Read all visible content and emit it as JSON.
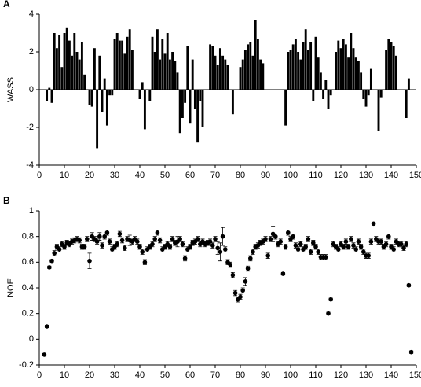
{
  "chart_data": [
    {
      "type": "bar",
      "label": "A",
      "ylabel": "WASS",
      "color": "#000000",
      "xlim": [
        0,
        150
      ],
      "xticks": [
        0,
        10,
        20,
        30,
        40,
        50,
        60,
        70,
        80,
        90,
        100,
        110,
        120,
        130,
        140,
        150
      ],
      "ylim": [
        -4,
        4
      ],
      "yticks": [
        -4,
        -2,
        0,
        2,
        4
      ],
      "x": [
        3,
        4,
        5,
        6,
        7,
        8,
        9,
        10,
        11,
        12,
        13,
        14,
        15,
        16,
        17,
        18,
        19,
        20,
        21,
        22,
        23,
        24,
        25,
        26,
        27,
        28,
        29,
        30,
        31,
        32,
        33,
        34,
        35,
        36,
        37,
        38,
        39,
        40,
        41,
        42,
        43,
        44,
        45,
        46,
        47,
        48,
        49,
        50,
        51,
        52,
        53,
        54,
        55,
        56,
        57,
        58,
        59,
        60,
        61,
        62,
        63,
        64,
        65,
        66,
        67,
        68,
        69,
        70,
        71,
        72,
        73,
        74,
        75,
        76,
        77,
        78,
        79,
        80,
        81,
        82,
        83,
        84,
        85,
        86,
        87,
        88,
        89,
        90,
        91,
        92,
        93,
        94,
        95,
        96,
        97,
        98,
        99,
        100,
        101,
        102,
        103,
        104,
        105,
        106,
        107,
        108,
        109,
        110,
        111,
        112,
        113,
        114,
        115,
        116,
        117,
        118,
        119,
        120,
        121,
        122,
        123,
        124,
        125,
        126,
        127,
        128,
        129,
        130,
        131,
        132,
        133,
        134,
        135,
        136,
        137,
        138,
        139,
        140,
        141,
        142,
        143,
        144,
        145,
        146,
        147
      ],
      "values": [
        -0.6,
        0.1,
        -0.7,
        3.0,
        2.2,
        2.9,
        1.2,
        3.0,
        3.3,
        2.6,
        1.8,
        3.0,
        2.0,
        1.6,
        2.5,
        0.8,
        0,
        -0.8,
        -0.9,
        2.2,
        -3.1,
        1.8,
        -1.2,
        0.6,
        -1.9,
        -0.3,
        -0.3,
        2.7,
        3.0,
        2.6,
        2.6,
        1.9,
        2.8,
        3.2,
        2.1,
        0,
        0,
        -0.5,
        0.4,
        -2.1,
        0,
        -0.6,
        2.8,
        2.0,
        3.2,
        1.6,
        2.7,
        1.9,
        3.0,
        1.6,
        2.0,
        1.5,
        0.9,
        -2.3,
        -1.5,
        -0.7,
        2.3,
        -1.8,
        1.6,
        -1.0,
        -2.8,
        -0.6,
        -2.0,
        0,
        0,
        2.4,
        2.3,
        1.8,
        1.3,
        2.2,
        1.8,
        1.6,
        1.3,
        0,
        -1.3,
        0,
        0,
        1.2,
        1.6,
        2.1,
        2.4,
        2.5,
        1.8,
        3.7,
        2.7,
        1.6,
        1.4,
        0,
        0,
        0,
        0,
        0,
        0,
        0,
        0,
        -1.9,
        2.0,
        2.1,
        2.4,
        2.7,
        2.0,
        1.6,
        2.5,
        3.2,
        2.1,
        2.5,
        -0.6,
        2.8,
        1.7,
        0.9,
        -0.5,
        0.5,
        -1.0,
        -0.3,
        0,
        2.0,
        2.6,
        2.2,
        2.7,
        2.4,
        1.7,
        3.0,
        2.2,
        1.7,
        1.5,
        0.9,
        -0.5,
        -0.9,
        -0.3,
        1.1,
        0,
        0,
        -2.2,
        -0.4,
        0,
        2.1,
        2.7,
        2.5,
        2.3,
        1.8,
        0,
        0,
        0,
        -1.5,
        0.6
      ]
    },
    {
      "type": "scatter",
      "label": "B",
      "ylabel": "NOE",
      "color": "#000000",
      "xlim": [
        0,
        150
      ],
      "xticks": [
        0,
        10,
        20,
        30,
        40,
        50,
        60,
        70,
        80,
        90,
        100,
        110,
        120,
        130,
        140,
        150
      ],
      "ylim": [
        -0.2,
        1
      ],
      "yticks": [
        -0.2,
        0,
        0.2,
        0.4,
        0.6,
        0.8,
        1
      ],
      "x": [
        2,
        3,
        4,
        5,
        6,
        7,
        8,
        9,
        10,
        11,
        12,
        13,
        14,
        15,
        16,
        17,
        18,
        19,
        20,
        21,
        22,
        23,
        24,
        25,
        26,
        27,
        28,
        29,
        30,
        31,
        32,
        33,
        34,
        35,
        36,
        37,
        38,
        39,
        40,
        41,
        42,
        43,
        44,
        45,
        46,
        47,
        48,
        49,
        50,
        51,
        52,
        53,
        54,
        55,
        56,
        57,
        58,
        59,
        60,
        61,
        62,
        63,
        64,
        65,
        66,
        67,
        68,
        69,
        70,
        71,
        72,
        73,
        74,
        75,
        76,
        77,
        78,
        79,
        80,
        81,
        82,
        83,
        84,
        85,
        86,
        87,
        88,
        89,
        90,
        91,
        92,
        93,
        94,
        95,
        96,
        97,
        98,
        99,
        100,
        101,
        102,
        103,
        104,
        105,
        106,
        107,
        108,
        109,
        110,
        111,
        112,
        113,
        114,
        115,
        116,
        117,
        118,
        119,
        120,
        121,
        122,
        123,
        124,
        125,
        126,
        127,
        128,
        129,
        130,
        131,
        132,
        133,
        134,
        135,
        136,
        137,
        138,
        139,
        140,
        141,
        142,
        143,
        144,
        145,
        146,
        147,
        148
      ],
      "values": [
        -0.12,
        0.1,
        0.56,
        0.61,
        0.67,
        0.72,
        0.7,
        0.74,
        0.72,
        0.75,
        0.74,
        0.76,
        0.77,
        0.78,
        0.77,
        0.72,
        0.72,
        0.78,
        0.61,
        0.8,
        0.78,
        0.76,
        0.8,
        0.73,
        0.8,
        0.83,
        0.76,
        0.7,
        0.72,
        0.74,
        0.82,
        0.77,
        0.71,
        0.78,
        0.77,
        0.76,
        0.78,
        0.76,
        0.72,
        0.68,
        0.6,
        0.7,
        0.72,
        0.74,
        0.78,
        0.83,
        0.77,
        0.7,
        0.72,
        0.74,
        0.72,
        0.78,
        0.75,
        0.76,
        0.78,
        0.74,
        0.63,
        0.7,
        0.72,
        0.75,
        0.76,
        0.78,
        0.74,
        0.76,
        0.74,
        0.75,
        0.76,
        0.73,
        0.78,
        0.71,
        0.68,
        0.8,
        0.7,
        0.6,
        0.58,
        0.5,
        0.36,
        0.31,
        0.33,
        0.38,
        0.45,
        0.55,
        0.63,
        0.68,
        0.72,
        0.73,
        0.75,
        0.76,
        0.78,
        0.65,
        0.78,
        0.82,
        0.8,
        0.74,
        0.76,
        0.51,
        0.72,
        0.83,
        0.78,
        0.8,
        0.73,
        0.7,
        0.74,
        0.7,
        0.72,
        0.78,
        0.68,
        0.75,
        0.72,
        0.68,
        0.64,
        0.64,
        0.64,
        0.2,
        0.31,
        0.74,
        0.72,
        0.7,
        0.74,
        0.72,
        0.76,
        0.72,
        0.78,
        0.73,
        0.7,
        0.76,
        0.72,
        0.68,
        0.65,
        0.65,
        0.76,
        0.9,
        0.78,
        0.76,
        0.76,
        0.72,
        0.74,
        0.8,
        0.72,
        0.7,
        0.76,
        0.74,
        0.74,
        0.71,
        0.74,
        0.42,
        -0.1
      ],
      "errors": [
        0.01,
        0.01,
        0.01,
        0.01,
        0.02,
        0.02,
        0.02,
        0.02,
        0.02,
        0.02,
        0.02,
        0.02,
        0.02,
        0.02,
        0.02,
        0.02,
        0.02,
        0.02,
        0.06,
        0.03,
        0.02,
        0.02,
        0.03,
        0.02,
        0.02,
        0.02,
        0.02,
        0.02,
        0.02,
        0.02,
        0.02,
        0.02,
        0.02,
        0.02,
        0.04,
        0.02,
        0.02,
        0.02,
        0.02,
        0.02,
        0.02,
        0.02,
        0.02,
        0.02,
        0.02,
        0.02,
        0.02,
        0.02,
        0.02,
        0.02,
        0.02,
        0.02,
        0.02,
        0.04,
        0.02,
        0.02,
        0.02,
        0.02,
        0.02,
        0.02,
        0.02,
        0.02,
        0.02,
        0.02,
        0.02,
        0.02,
        0.02,
        0.02,
        0.02,
        0.05,
        0.07,
        0.07,
        0.02,
        0.02,
        0.02,
        0.02,
        0.02,
        0.02,
        0.02,
        0.02,
        0.03,
        0.02,
        0.02,
        0.02,
        0.02,
        0.02,
        0.02,
        0.02,
        0.02,
        0.02,
        0.02,
        0.06,
        0.02,
        0.02,
        0.02,
        0.01,
        0.02,
        0.02,
        0.02,
        0.02,
        0.02,
        0.02,
        0.02,
        0.02,
        0.02,
        0.02,
        0.02,
        0.02,
        0.02,
        0.02,
        0.02,
        0.02,
        0.02,
        0.01,
        0.01,
        0.02,
        0.02,
        0.02,
        0.02,
        0.02,
        0.02,
        0.02,
        0.02,
        0.02,
        0.02,
        0.02,
        0.02,
        0.02,
        0.02,
        0.02,
        0.02,
        0.01,
        0.02,
        0.02,
        0.02,
        0.02,
        0.02,
        0.02,
        0.02,
        0.02,
        0.02,
        0.02,
        0.02,
        0.02,
        0.02,
        0.01,
        0.01
      ]
    }
  ]
}
